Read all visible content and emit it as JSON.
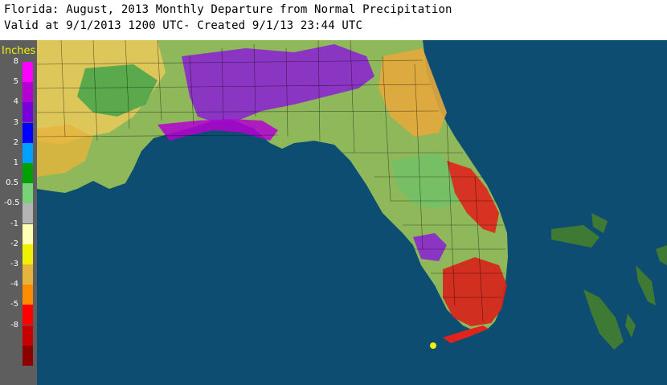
{
  "header": {
    "title_line1": "Florida: August, 2013 Monthly Departure from Normal Precipitation",
    "title_line2": "Valid at 9/1/2013 1200 UTC- Created 9/1/13 23:44 UTC"
  },
  "legend": {
    "unit": "Inches",
    "items": [
      {
        "label": "8",
        "color": "#ff00ff"
      },
      {
        "label": "5",
        "color": "#b400d2"
      },
      {
        "label": "4",
        "color": "#7800dc"
      },
      {
        "label": "3",
        "color": "#0000ff"
      },
      {
        "label": "2",
        "color": "#00a0ff"
      },
      {
        "label": "1",
        "color": "#00a000"
      },
      {
        "label": "0.5",
        "color": "#78d278"
      },
      {
        "label": "-0.5",
        "color": "#b4b4b4"
      },
      {
        "label": "-1",
        "color": "#ffffb4"
      },
      {
        "label": "-2",
        "color": "#f0f000"
      },
      {
        "label": "-3",
        "color": "#e6b43c"
      },
      {
        "label": "-4",
        "color": "#ff8c00"
      },
      {
        "label": "-5",
        "color": "#ff0000"
      },
      {
        "label": "-8",
        "color": "#c80000"
      },
      {
        "label": "",
        "color": "#8c0000"
      }
    ]
  },
  "map": {
    "water_color": "#0e4d72",
    "bahamas_color": "#3f7a34"
  }
}
